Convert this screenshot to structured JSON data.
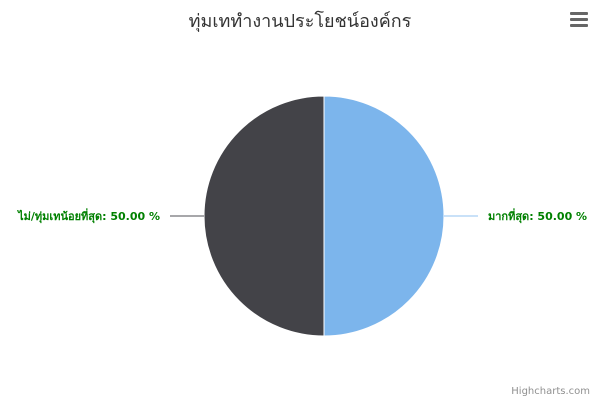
{
  "chart_data": {
    "type": "pie",
    "title": "ทุ่มเททำงานประโยชน์องค์กร",
    "slices": [
      {
        "name": "มากที่สุด",
        "value": 50.0,
        "label": "มากที่สุด: 50.00 %",
        "color": "#7cb5ec",
        "connector_color": "#b7d7f5"
      },
      {
        "name": "ไม่/ทุ่มเทน้อยที่สุด",
        "value": 50.0,
        "label": "ไม่/ทุ่มเทน้อยที่สุด: 50.00 %",
        "color": "#434348",
        "connector_color": "#8a8a8e"
      }
    ],
    "start_angle": 0,
    "legend": "none"
  },
  "ui": {
    "menu_icon": "hamburger-menu-icon",
    "credits": "Highcharts.com"
  }
}
